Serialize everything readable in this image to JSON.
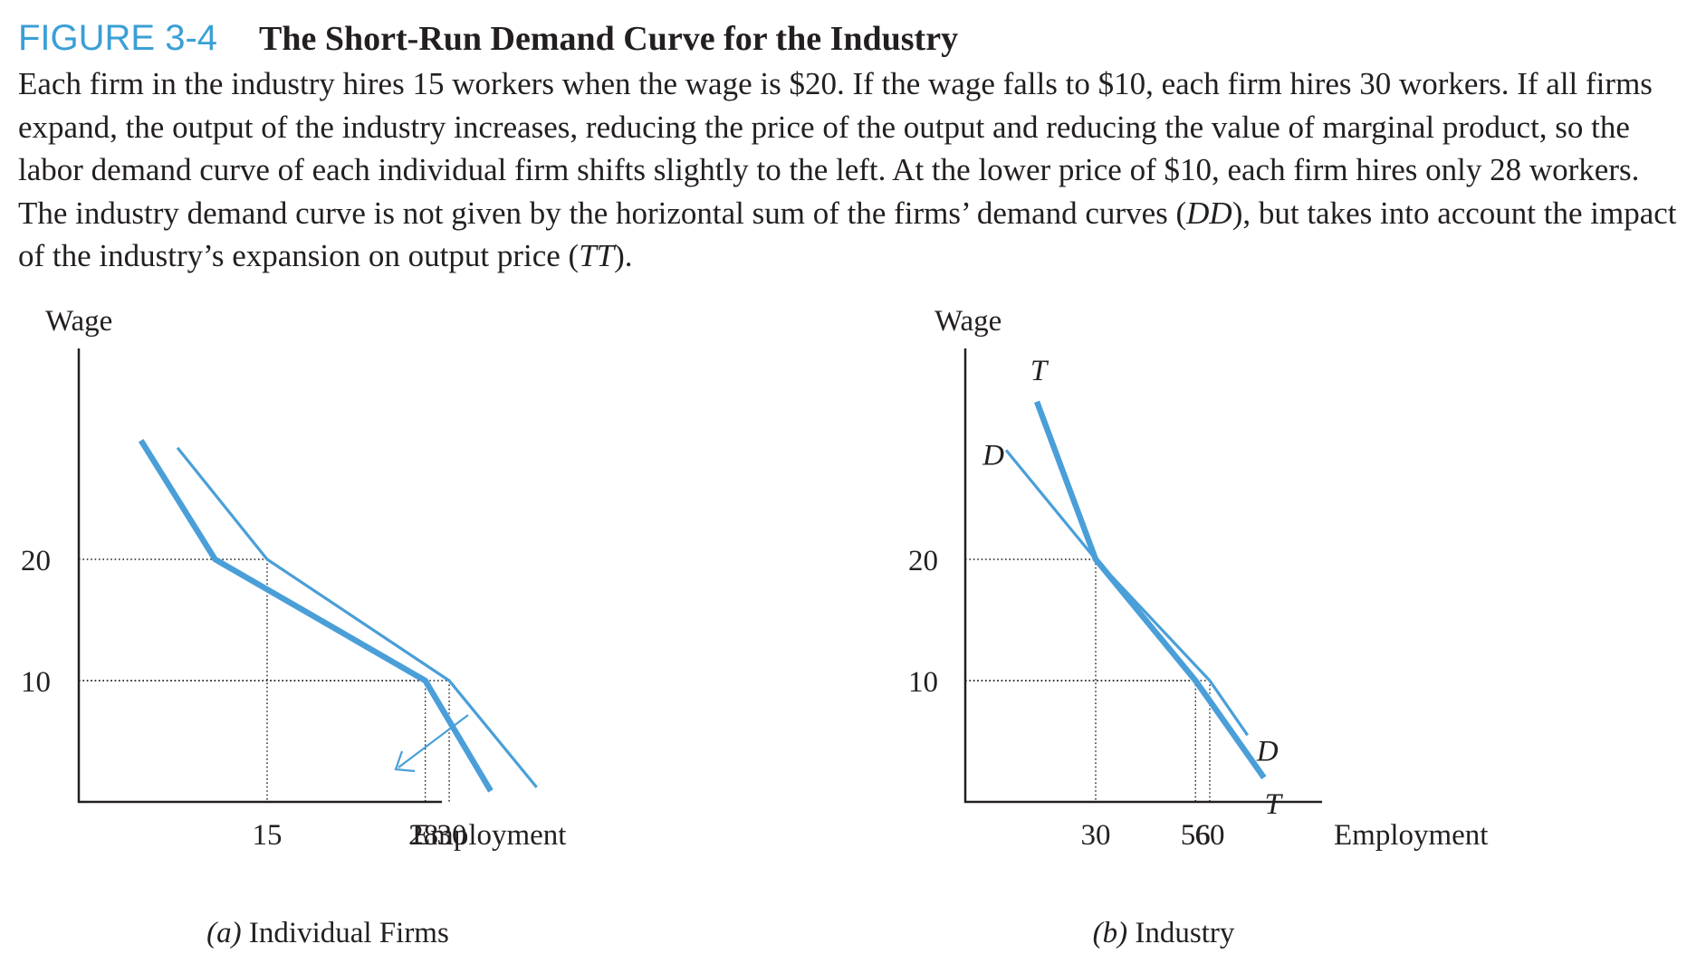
{
  "figure": {
    "label": "FIGURE 3-4",
    "title": "The Short-Run Demand Curve for the Industry",
    "caption": [
      {
        "t": "Each firm in the industry hires 15 workers when the wage is $20. If the wage falls to $10, each firm hires 30 workers. If all firms expand, the output of the industry increases, reducing the price of the output and reducing the value of marginal product, so the labor demand curve of each individual firm shifts slightly to the left. At the lower price of $10, each firm hires only 28 workers. The industry demand curve is not given by the horizontal sum of the firms’ demand curves ("
      },
      {
        "t": "DD",
        "i": true
      },
      {
        "t": "), but takes into account the impact of the industry’s expansion on output price ("
      },
      {
        "t": "TT",
        "i": true
      },
      {
        "t": ")."
      }
    ]
  },
  "colors": {
    "curve": "#4a9fd8",
    "label_blue": "#3a9fd6",
    "text": "#231f20"
  },
  "chart_data": [
    {
      "type": "line",
      "panel_label": "(a)",
      "panel_title": "Individual Firms",
      "xlabel": "Employment",
      "ylabel": "Wage",
      "xlim": [
        0,
        45
      ],
      "ylim": [
        0,
        33
      ],
      "x_ticks": [
        15,
        28,
        30
      ],
      "y_ticks": [
        20,
        10
      ],
      "series": [
        {
          "name": "",
          "style": "thin",
          "points": [
            [
              7.8,
              29.2
            ],
            [
              15,
              20
            ],
            [
              30,
              10
            ],
            [
              37.4,
              1.2
            ]
          ]
        },
        {
          "name": "",
          "style": "thick",
          "points": [
            [
              4.9,
              29.8
            ],
            [
              10.8,
              20
            ],
            [
              28,
              10
            ],
            [
              33.5,
              0.9
            ]
          ]
        }
      ],
      "guides": [
        [
          15,
          20
        ],
        [
          28,
          10
        ],
        [
          30,
          10
        ]
      ],
      "arrow": {
        "direction": "down-left",
        "meaning": "shift of firm demand curve to the left"
      }
    },
    {
      "type": "line",
      "panel_label": "(b)",
      "panel_title": "Industry",
      "xlabel": "Employment",
      "ylabel": "Wage",
      "xlim": [
        0,
        78
      ],
      "ylim": [
        0,
        33
      ],
      "x_ticks": [
        30,
        56,
        60
      ],
      "y_ticks": [
        20,
        10
      ],
      "series": [
        {
          "name": "D",
          "style": "thin",
          "label_start": "D",
          "label_end": "D",
          "points": [
            [
              9,
              29
            ],
            [
              30,
              20
            ],
            [
              60,
              10
            ],
            [
              71,
              5.5
            ]
          ]
        },
        {
          "name": "T",
          "style": "thick",
          "label_start": "T",
          "label_end": "T",
          "points": [
            [
              16,
              33
            ],
            [
              30,
              20
            ],
            [
              56,
              10
            ],
            [
              76,
              2
            ]
          ]
        }
      ],
      "guides": [
        [
          30,
          20
        ],
        [
          56,
          10
        ],
        [
          60,
          10
        ]
      ]
    }
  ]
}
